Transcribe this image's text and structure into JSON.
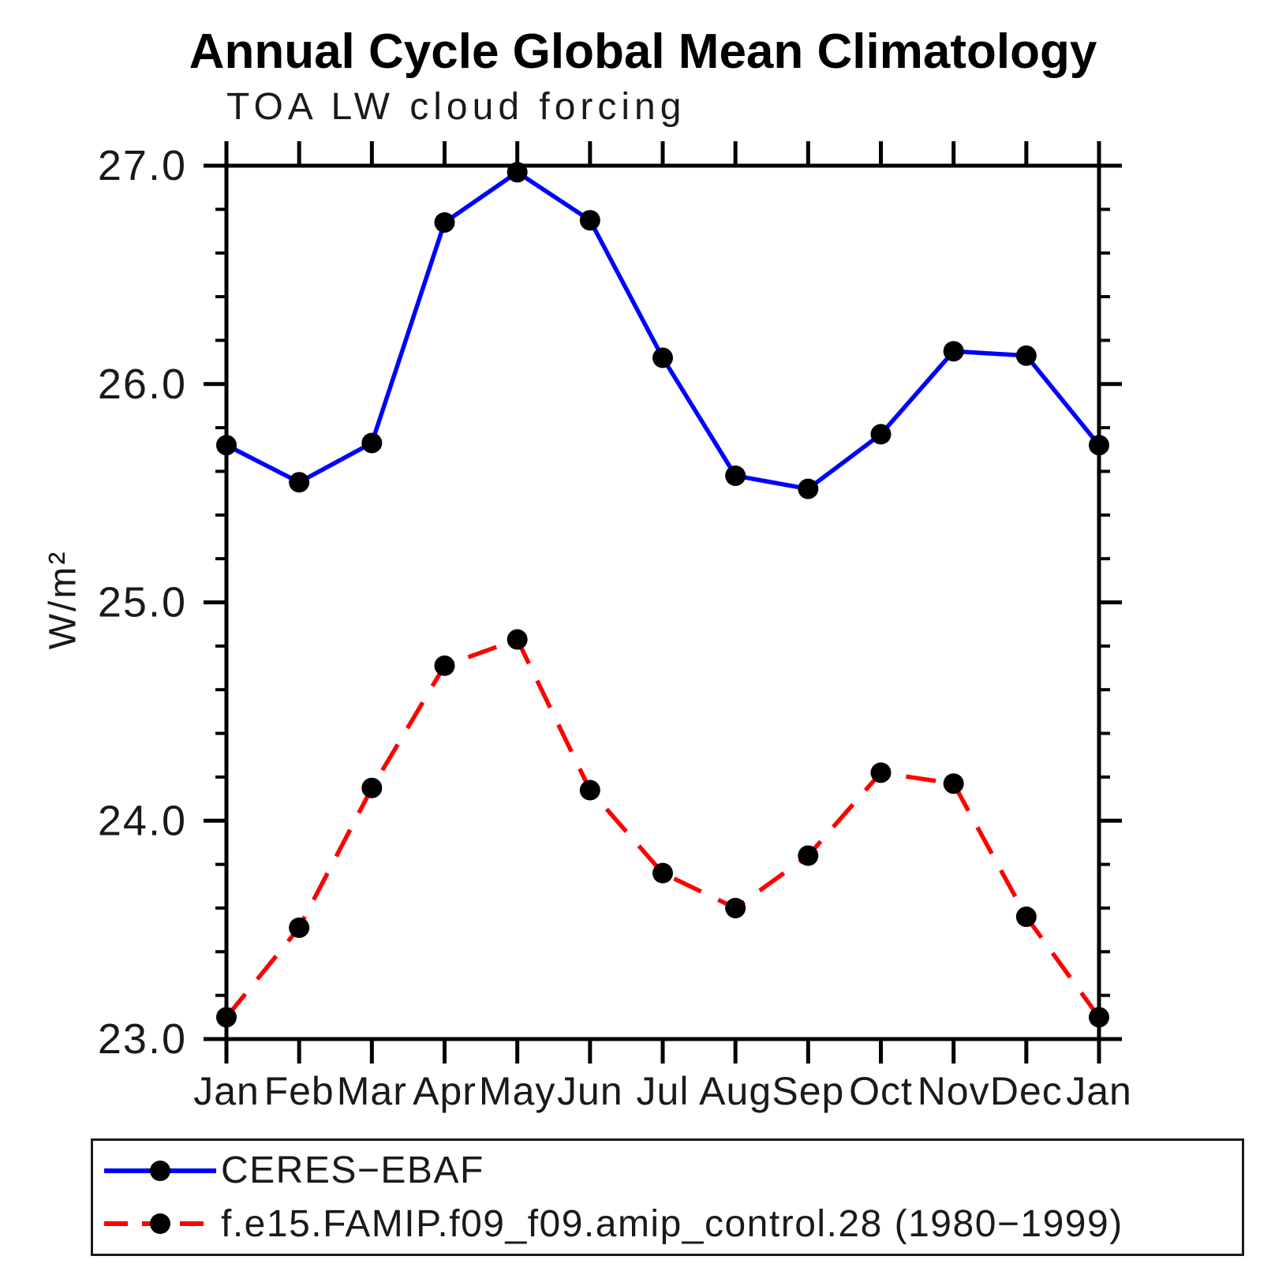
{
  "title": "Annual Cycle Global Mean Climatology",
  "subtitle": "TOA LW cloud forcing",
  "y_axis_label": "W/m²",
  "colors": {
    "axis": "#000000",
    "background": "#ffffff",
    "series_blue": "#0000ff",
    "series_red": "#ff0000",
    "marker": "#000000"
  },
  "chart_data": {
    "type": "line",
    "title": "Annual Cycle Global Mean Climatology",
    "subtitle": "TOA LW cloud forcing",
    "xlabel": "",
    "ylabel": "W/m²",
    "categories": [
      "Jan",
      "Feb",
      "Mar",
      "Apr",
      "May",
      "Jun",
      "Jul",
      "Aug",
      "Sep",
      "Oct",
      "Nov",
      "Dec",
      "Jan"
    ],
    "ylim": [
      23.0,
      27.0
    ],
    "ytick_major_interval": 1.0,
    "ytick_minor_interval": 0.2,
    "ytick_labels": [
      "23.0",
      "24.0",
      "25.0",
      "26.0",
      "27.0"
    ],
    "grid": false,
    "legend_position": "bottom",
    "series": [
      {
        "name": "CERES−EBAF",
        "line_style": "solid",
        "color": "#0000ff",
        "marker": "circle",
        "marker_color": "#000000",
        "values": [
          25.72,
          25.55,
          25.73,
          26.74,
          26.97,
          26.75,
          26.12,
          25.58,
          25.52,
          25.77,
          26.15,
          26.13,
          25.72
        ]
      },
      {
        "name": "f.e15.FAMIP.f09_f09.amip_control.28 (1980−1999)",
        "line_style": "dashed",
        "color": "#ff0000",
        "marker": "circle",
        "marker_color": "#000000",
        "values": [
          23.1,
          23.51,
          24.15,
          24.71,
          24.83,
          24.14,
          23.76,
          23.6,
          23.84,
          24.22,
          24.17,
          23.56,
          23.1
        ]
      }
    ]
  },
  "legend": {
    "items": [
      {
        "label": "CERES−EBAF"
      },
      {
        "label": "f.e15.FAMIP.f09_f09.amip_control.28 (1980−1999)"
      }
    ]
  }
}
